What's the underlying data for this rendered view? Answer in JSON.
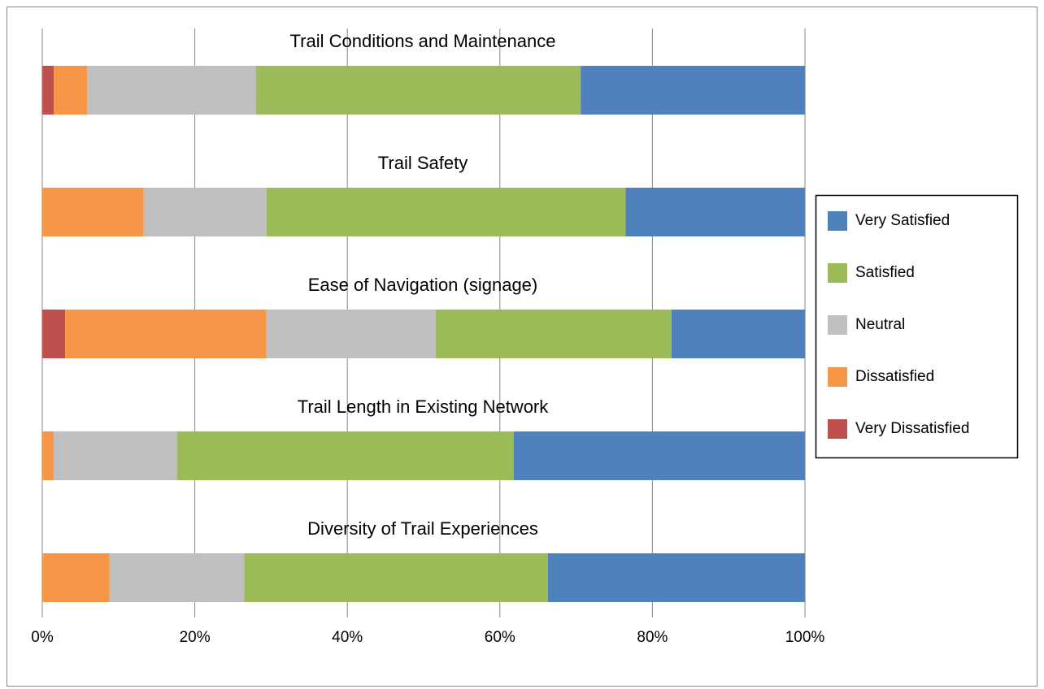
{
  "chart_data": {
    "type": "stacked_bar_horizontal",
    "categories": [
      "Trail Conditions and Maintenance",
      "Trail Safety",
      "Ease of Navigation (signage)",
      "Trail Length in Existing Network",
      "Diversity of Trail Experiences"
    ],
    "series": [
      {
        "name": "Very Satisfied",
        "color": "#4f81bd",
        "values": [
          29.4,
          23.5,
          17.5,
          38.2,
          33.7
        ]
      },
      {
        "name": "Satisfied",
        "color": "#9bbb59",
        "values": [
          42.6,
          47.1,
          30.9,
          44.1,
          39.8
        ]
      },
      {
        "name": "Neutral",
        "color": "#bfbfbf",
        "values": [
          22.1,
          16.1,
          22.2,
          16.2,
          17.7
        ]
      },
      {
        "name": "Dissatisfied",
        "color": "#f79646",
        "values": [
          4.4,
          13.3,
          26.4,
          1.5,
          8.8
        ]
      },
      {
        "name": "Very Dissatisfied",
        "color": "#c0504d",
        "values": [
          1.5,
          0,
          3.0,
          0,
          0
        ]
      }
    ],
    "xlim": [
      0,
      100
    ],
    "xticks": [
      {
        "value": 0,
        "label": "0%"
      },
      {
        "value": 20,
        "label": "20%"
      },
      {
        "value": 40,
        "label": "40%"
      },
      {
        "value": 60,
        "label": "60%"
      },
      {
        "value": 80,
        "label": "80%"
      },
      {
        "value": 100,
        "label": "100%"
      }
    ],
    "grid": true,
    "legend": "right"
  }
}
